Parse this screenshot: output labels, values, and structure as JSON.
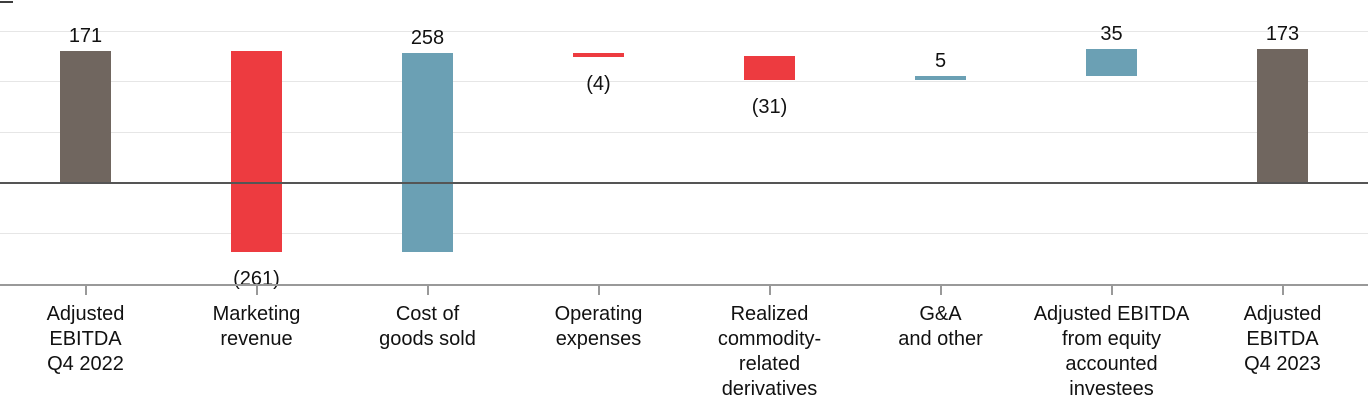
{
  "chart_data": {
    "type": "bar",
    "subtype": "waterfall",
    "title": "",
    "categories": [
      [
        "Adjusted",
        "EBITDA",
        "Q4 2022"
      ],
      [
        "Marketing",
        "revenue"
      ],
      [
        "Cost of",
        "goods sold"
      ],
      [
        "Operating",
        "expenses"
      ],
      [
        "Realized",
        "commodity-",
        "related",
        "derivatives"
      ],
      [
        "G&A",
        "and other"
      ],
      [
        "Adjusted EBITDA",
        "from equity",
        "accounted",
        "investees"
      ],
      [
        "Adjusted",
        "EBITDA",
        "Q4 2023"
      ]
    ],
    "values": [
      171,
      -261,
      258,
      -4,
      -31,
      5,
      35,
      173
    ],
    "bar_roles": [
      "total",
      "decrease",
      "increase",
      "decrease",
      "decrease",
      "increase",
      "increase",
      "total"
    ],
    "value_labels": [
      "171",
      "(261)",
      "258",
      "(4)",
      "(31)",
      "5",
      "35",
      "173"
    ],
    "running_totals": [
      171,
      -90,
      168,
      164,
      133,
      138,
      173,
      173
    ],
    "colors": {
      "total_bar": "#70665F",
      "decrease_bar": "#ED3B40",
      "increase_bar": "#6BA0B4",
      "gridline": "#E6E6E6",
      "zero_line": "#555555",
      "axis_line": "#999999",
      "label_text": "#111111"
    },
    "layout_hints": {
      "ylim": [
        -132,
        237
      ],
      "y_axis_labeled": false,
      "grid": true,
      "legend": false,
      "value_labels_position": "outside-end",
      "negative_values_in_parentheses": true
    }
  }
}
